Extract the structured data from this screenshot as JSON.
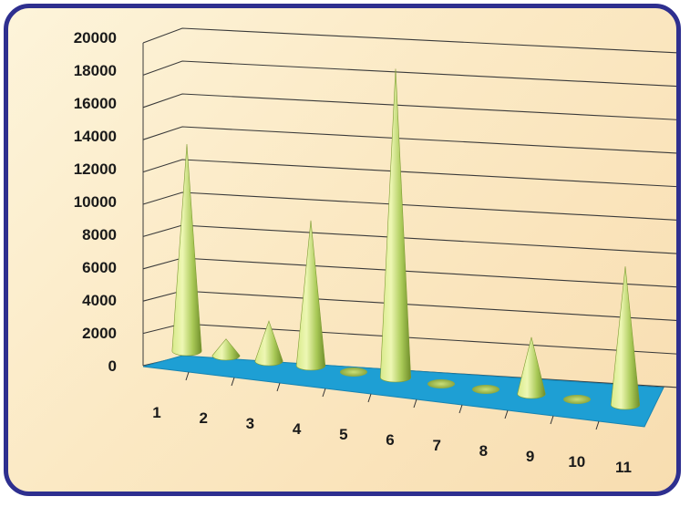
{
  "chart_data": {
    "type": "bar",
    "style": "3d-cone",
    "title": "",
    "xlabel": "",
    "ylabel": "",
    "categories": [
      "1",
      "2",
      "3",
      "4",
      "5",
      "6",
      "7",
      "8",
      "9",
      "10",
      "11"
    ],
    "values": [
      12400,
      1000,
      2400,
      8700,
      50,
      18500,
      150,
      100,
      3400,
      400,
      8300
    ],
    "ylim": [
      0,
      20000
    ],
    "y_ticks": [
      "0",
      "2000",
      "4000",
      "6000",
      "8000",
      "10000",
      "12000",
      "14000",
      "16000",
      "18000",
      "20000"
    ],
    "grid": true,
    "legend": "none",
    "colors": {
      "cone_light": "#e4f0a0",
      "cone_mid": "#a9c957",
      "cone_dark": "#6f8d2a",
      "floor": "#1e9fd4",
      "frame_border": "#2e2f8f",
      "background": "#fbe9c4",
      "gridline": "#3a3a3a"
    }
  }
}
